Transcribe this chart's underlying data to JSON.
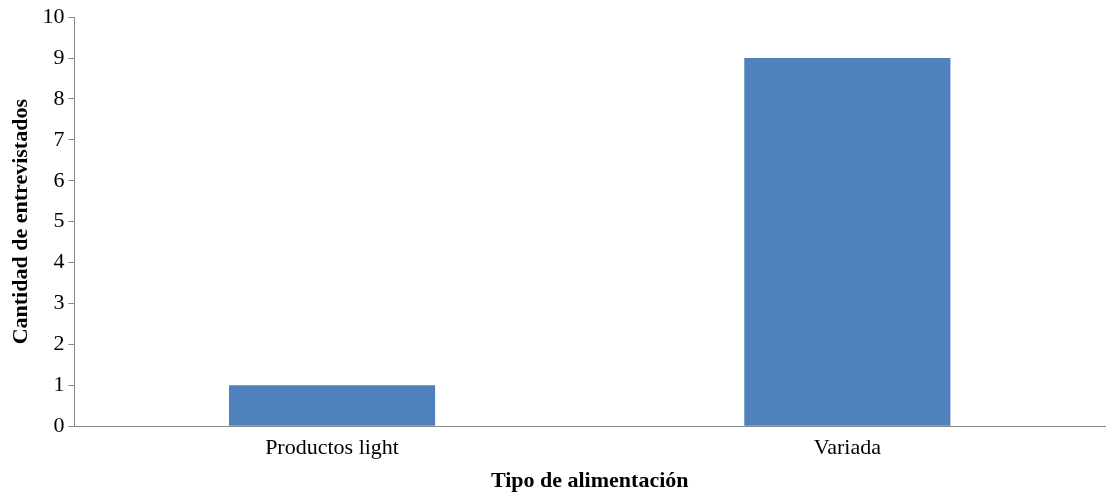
{
  "chart_data": {
    "type": "bar",
    "xlabel": "Tipo de alimentación",
    "ylabel": "Cantidad de entrevistados",
    "categories": [
      "Productos light",
      "Variada"
    ],
    "values": [
      1,
      9
    ],
    "color": "#4f81bd",
    "ylim": [
      0,
      10
    ],
    "yticks": [
      0,
      1,
      2,
      3,
      4,
      5,
      6,
      7,
      8,
      9,
      10
    ],
    "grid": false,
    "legend": false
  }
}
